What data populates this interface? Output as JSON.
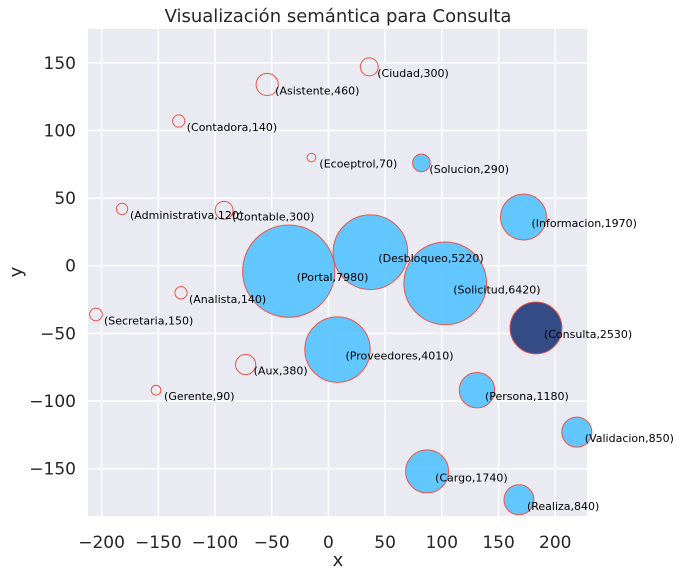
{
  "chart_data": {
    "type": "scatter",
    "title": "Visualización semántica para Consulta",
    "xlabel": "x",
    "ylabel": "y",
    "xlim": [
      -212,
      228
    ],
    "ylim": [
      -185,
      175
    ],
    "xticks": [
      -200,
      -150,
      -100,
      -50,
      0,
      50,
      100,
      150,
      200
    ],
    "yticks": [
      150,
      100,
      50,
      0,
      -50,
      -100,
      -150
    ],
    "grid": true,
    "colors": {
      "background": "#eaeaf2",
      "grid": "#ffffff",
      "filled": "#5bc5ff",
      "highlight": "#354b86",
      "edge": "#e8564a"
    },
    "points": [
      {
        "label": "(Ciudad,300)",
        "x": 36,
        "y": 147,
        "size": 300,
        "filled": false
      },
      {
        "label": "(Asistente,460)",
        "x": -54,
        "y": 134,
        "size": 460,
        "filled": false
      },
      {
        "label": "(Contadora,140)",
        "x": -132,
        "y": 107,
        "size": 140,
        "filled": false
      },
      {
        "label": "(Ecoeptrol,70)",
        "x": -15,
        "y": 80,
        "size": 70,
        "filled": false
      },
      {
        "label": "(Solucion,290)",
        "x": 82,
        "y": 76,
        "size": 290,
        "filled": true
      },
      {
        "label": "(Administrativa,120)",
        "x": -182,
        "y": 42,
        "size": 120,
        "filled": false
      },
      {
        "label": "(Contable,300)",
        "x": -92,
        "y": 41,
        "size": 300,
        "filled": false
      },
      {
        "label": "(Informacion,1970)",
        "x": 172,
        "y": 36,
        "size": 1970,
        "filled": true
      },
      {
        "label": "(Desbloqueo,5220)",
        "x": 37,
        "y": 10,
        "size": 5220,
        "filled": true
      },
      {
        "label": "(Portal,7980)",
        "x": -35,
        "y": -4,
        "size": 7980,
        "filled": true
      },
      {
        "label": "(Solicitud,6420)",
        "x": 103,
        "y": -13,
        "size": 6420,
        "filled": true
      },
      {
        "label": "(Analista,140)",
        "x": -130,
        "y": -20,
        "size": 140,
        "filled": false
      },
      {
        "label": "(Secretaria,150)",
        "x": -205,
        "y": -36,
        "size": 150,
        "filled": false
      },
      {
        "label": "(Consulta,2530)",
        "x": 183,
        "y": -46,
        "size": 2530,
        "filled": true,
        "highlight": true
      },
      {
        "label": "(Proveedores,4010)",
        "x": 8,
        "y": -62,
        "size": 4010,
        "filled": true
      },
      {
        "label": "(Aux,380)",
        "x": -73,
        "y": -73,
        "size": 380,
        "filled": false
      },
      {
        "label": "(Gerente,90)",
        "x": -152,
        "y": -92,
        "size": 90,
        "filled": false
      },
      {
        "label": "(Persona,1180)",
        "x": 131,
        "y": -92,
        "size": 1180,
        "filled": true
      },
      {
        "label": "(Validacion,850)",
        "x": 219,
        "y": -123,
        "size": 850,
        "filled": true
      },
      {
        "label": "(Cargo,1740)",
        "x": 87,
        "y": -152,
        "size": 1740,
        "filled": true
      },
      {
        "label": "(Realiza,840)",
        "x": 168,
        "y": -173,
        "size": 840,
        "filled": true
      }
    ]
  }
}
